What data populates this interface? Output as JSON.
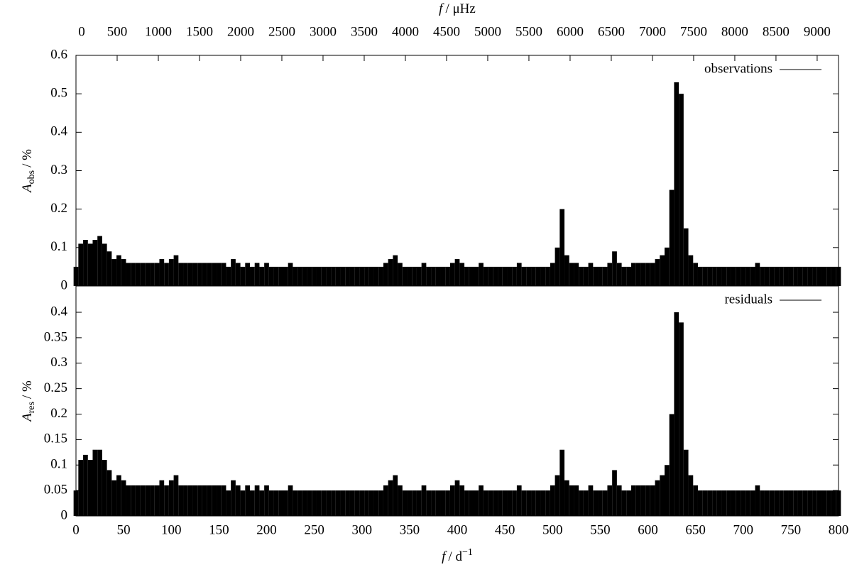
{
  "chart_data": [
    {
      "type": "bar",
      "x2label": [
        "f",
        "/ μHz"
      ],
      "x2lim": [
        0,
        9259.26
      ],
      "x2ticks": [
        0,
        500,
        1000,
        1500,
        2000,
        2500,
        3000,
        3500,
        4000,
        4500,
        5000,
        5500,
        6000,
        6500,
        7000,
        7500,
        8000,
        8500,
        9000
      ],
      "ylabel": [
        "A",
        "obs",
        "/ %"
      ],
      "xlim": [
        0,
        800
      ],
      "ylim": [
        0,
        0.6
      ],
      "yticks": [
        0,
        0.1,
        0.2,
        0.3,
        0.4,
        0.5,
        0.6
      ],
      "series": [
        {
          "name": "observations",
          "color": "#000000",
          "x": [
            0,
            5,
            10,
            15,
            20,
            25,
            30,
            35,
            40,
            45,
            50,
            55,
            60,
            65,
            70,
            75,
            80,
            85,
            90,
            95,
            100,
            105,
            110,
            115,
            120,
            125,
            130,
            135,
            140,
            145,
            150,
            155,
            160,
            165,
            170,
            175,
            180,
            185,
            190,
            195,
            200,
            205,
            210,
            215,
            220,
            225,
            230,
            235,
            240,
            245,
            250,
            255,
            260,
            265,
            270,
            275,
            280,
            285,
            290,
            295,
            300,
            305,
            310,
            315,
            320,
            325,
            330,
            335,
            340,
            345,
            350,
            355,
            360,
            365,
            370,
            375,
            380,
            385,
            390,
            395,
            400,
            405,
            410,
            415,
            420,
            425,
            430,
            435,
            440,
            445,
            450,
            455,
            460,
            465,
            470,
            475,
            480,
            485,
            490,
            495,
            500,
            505,
            510,
            515,
            520,
            525,
            530,
            535,
            540,
            545,
            550,
            555,
            560,
            565,
            570,
            575,
            580,
            585,
            590,
            595,
            600,
            605,
            610,
            615,
            620,
            625,
            630,
            635,
            640,
            645,
            650,
            655,
            660,
            665,
            670,
            675,
            680,
            685,
            690,
            695,
            700,
            705,
            710,
            715,
            720,
            725,
            730,
            735,
            740,
            745,
            750,
            755,
            760,
            765,
            770,
            775,
            780,
            785,
            790,
            795,
            800
          ],
          "values": [
            0.05,
            0.11,
            0.12,
            0.11,
            0.12,
            0.13,
            0.11,
            0.09,
            0.07,
            0.08,
            0.07,
            0.06,
            0.06,
            0.06,
            0.06,
            0.06,
            0.06,
            0.06,
            0.07,
            0.06,
            0.07,
            0.08,
            0.06,
            0.06,
            0.06,
            0.06,
            0.06,
            0.06,
            0.06,
            0.06,
            0.06,
            0.06,
            0.05,
            0.07,
            0.06,
            0.05,
            0.06,
            0.05,
            0.06,
            0.05,
            0.06,
            0.05,
            0.05,
            0.05,
            0.05,
            0.06,
            0.05,
            0.05,
            0.05,
            0.05,
            0.05,
            0.05,
            0.05,
            0.05,
            0.05,
            0.05,
            0.05,
            0.05,
            0.05,
            0.05,
            0.05,
            0.05,
            0.05,
            0.05,
            0.05,
            0.06,
            0.07,
            0.08,
            0.06,
            0.05,
            0.05,
            0.05,
            0.05,
            0.06,
            0.05,
            0.05,
            0.05,
            0.05,
            0.05,
            0.06,
            0.07,
            0.06,
            0.05,
            0.05,
            0.05,
            0.06,
            0.05,
            0.05,
            0.05,
            0.05,
            0.05,
            0.05,
            0.05,
            0.06,
            0.05,
            0.05,
            0.05,
            0.05,
            0.05,
            0.05,
            0.06,
            0.1,
            0.2,
            0.08,
            0.06,
            0.06,
            0.05,
            0.05,
            0.06,
            0.05,
            0.05,
            0.05,
            0.06,
            0.09,
            0.06,
            0.05,
            0.05,
            0.06,
            0.06,
            0.06,
            0.06,
            0.06,
            0.07,
            0.08,
            0.1,
            0.25,
            0.53,
            0.5,
            0.15,
            0.08,
            0.06,
            0.05,
            0.05,
            0.05,
            0.05,
            0.05,
            0.05,
            0.05,
            0.05,
            0.05,
            0.05,
            0.05,
            0.05,
            0.06,
            0.05,
            0.05,
            0.05,
            0.05,
            0.05,
            0.05,
            0.05,
            0.05,
            0.05,
            0.05,
            0.05,
            0.05,
            0.05,
            0.05,
            0.05,
            0.05,
            0.05
          ]
        }
      ]
    },
    {
      "type": "bar",
      "xlabel": [
        "f",
        "/ d",
        "−1"
      ],
      "ylabel": [
        "A",
        "res",
        "/ %"
      ],
      "xlim": [
        0,
        800
      ],
      "xticks": [
        0,
        50,
        100,
        150,
        200,
        250,
        300,
        350,
        400,
        450,
        500,
        550,
        600,
        650,
        700,
        750,
        800
      ],
      "ylim": [
        0,
        0.4516
      ],
      "yticks": [
        0,
        0.05,
        0.1,
        0.15,
        0.2,
        0.25,
        0.3,
        0.35,
        0.4
      ],
      "series": [
        {
          "name": "residuals",
          "color": "#000000",
          "x": [
            0,
            5,
            10,
            15,
            20,
            25,
            30,
            35,
            40,
            45,
            50,
            55,
            60,
            65,
            70,
            75,
            80,
            85,
            90,
            95,
            100,
            105,
            110,
            115,
            120,
            125,
            130,
            135,
            140,
            145,
            150,
            155,
            160,
            165,
            170,
            175,
            180,
            185,
            190,
            195,
            200,
            205,
            210,
            215,
            220,
            225,
            230,
            235,
            240,
            245,
            250,
            255,
            260,
            265,
            270,
            275,
            280,
            285,
            290,
            295,
            300,
            305,
            310,
            315,
            320,
            325,
            330,
            335,
            340,
            345,
            350,
            355,
            360,
            365,
            370,
            375,
            380,
            385,
            390,
            395,
            400,
            405,
            410,
            415,
            420,
            425,
            430,
            435,
            440,
            445,
            450,
            455,
            460,
            465,
            470,
            475,
            480,
            485,
            490,
            495,
            500,
            505,
            510,
            515,
            520,
            525,
            530,
            535,
            540,
            545,
            550,
            555,
            560,
            565,
            570,
            575,
            580,
            585,
            590,
            595,
            600,
            605,
            610,
            615,
            620,
            625,
            630,
            635,
            640,
            645,
            650,
            655,
            660,
            665,
            670,
            675,
            680,
            685,
            690,
            695,
            700,
            705,
            710,
            715,
            720,
            725,
            730,
            735,
            740,
            745,
            750,
            755,
            760,
            765,
            770,
            775,
            780,
            785,
            790,
            795,
            800
          ],
          "values": [
            0.05,
            0.11,
            0.12,
            0.11,
            0.13,
            0.13,
            0.11,
            0.09,
            0.07,
            0.08,
            0.07,
            0.06,
            0.06,
            0.06,
            0.06,
            0.06,
            0.06,
            0.06,
            0.07,
            0.06,
            0.07,
            0.08,
            0.06,
            0.06,
            0.06,
            0.06,
            0.06,
            0.06,
            0.06,
            0.06,
            0.06,
            0.06,
            0.05,
            0.07,
            0.06,
            0.05,
            0.06,
            0.05,
            0.06,
            0.05,
            0.06,
            0.05,
            0.05,
            0.05,
            0.05,
            0.06,
            0.05,
            0.05,
            0.05,
            0.05,
            0.05,
            0.05,
            0.05,
            0.05,
            0.05,
            0.05,
            0.05,
            0.05,
            0.05,
            0.05,
            0.05,
            0.05,
            0.05,
            0.05,
            0.05,
            0.06,
            0.07,
            0.08,
            0.06,
            0.05,
            0.05,
            0.05,
            0.05,
            0.06,
            0.05,
            0.05,
            0.05,
            0.05,
            0.05,
            0.06,
            0.07,
            0.06,
            0.05,
            0.05,
            0.05,
            0.06,
            0.05,
            0.05,
            0.05,
            0.05,
            0.05,
            0.05,
            0.05,
            0.06,
            0.05,
            0.05,
            0.05,
            0.05,
            0.05,
            0.05,
            0.06,
            0.08,
            0.13,
            0.07,
            0.06,
            0.06,
            0.05,
            0.05,
            0.06,
            0.05,
            0.05,
            0.05,
            0.06,
            0.09,
            0.06,
            0.05,
            0.05,
            0.06,
            0.06,
            0.06,
            0.06,
            0.06,
            0.07,
            0.08,
            0.1,
            0.2,
            0.4,
            0.38,
            0.13,
            0.08,
            0.06,
            0.05,
            0.05,
            0.05,
            0.05,
            0.05,
            0.05,
            0.05,
            0.05,
            0.05,
            0.05,
            0.05,
            0.05,
            0.06,
            0.05,
            0.05,
            0.05,
            0.05,
            0.05,
            0.05,
            0.05,
            0.05,
            0.05,
            0.05,
            0.05,
            0.05,
            0.05,
            0.05,
            0.05,
            0.05,
            0.05
          ]
        }
      ]
    }
  ]
}
